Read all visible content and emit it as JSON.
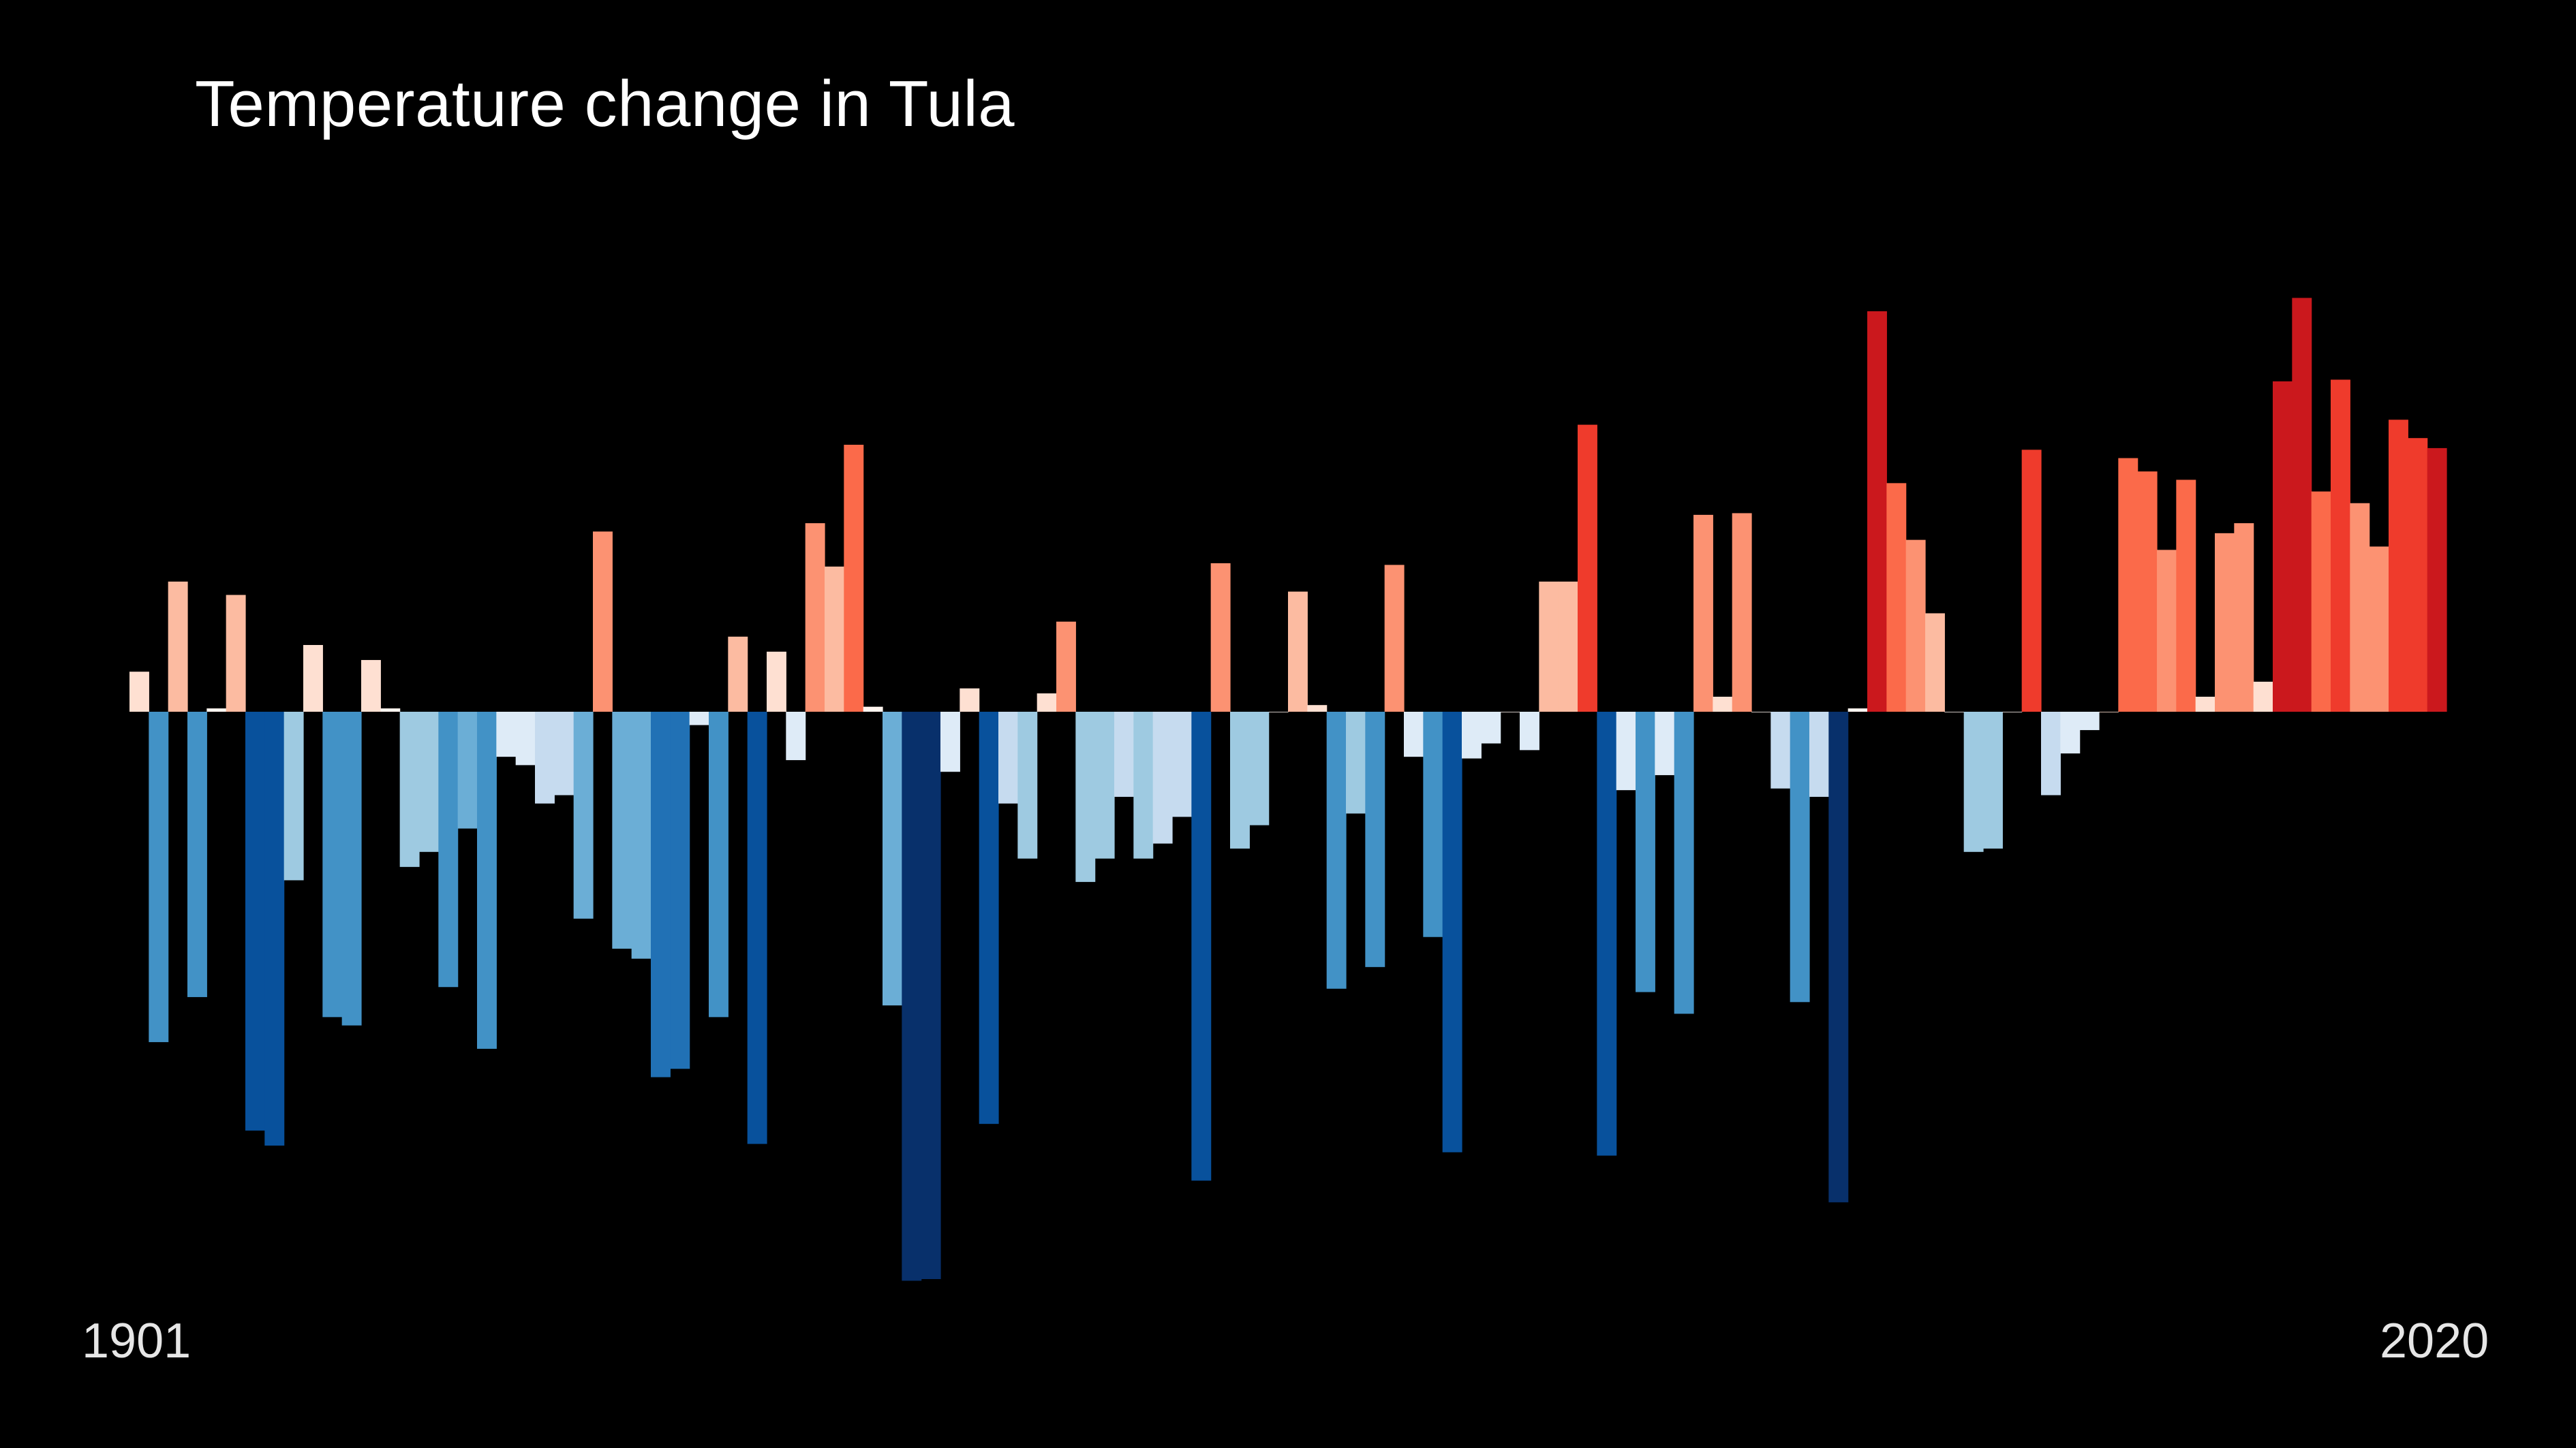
{
  "chart_data": {
    "type": "bar",
    "title": "Temperature change in Tula",
    "x_start_label": "1901",
    "x_end_label": "2020",
    "x": [
      1901,
      1902,
      1903,
      1904,
      1905,
      1906,
      1907,
      1908,
      1909,
      1910,
      1911,
      1912,
      1913,
      1914,
      1915,
      1916,
      1917,
      1918,
      1919,
      1920,
      1921,
      1922,
      1923,
      1924,
      1925,
      1926,
      1927,
      1928,
      1929,
      1930,
      1931,
      1932,
      1933,
      1934,
      1935,
      1936,
      1937,
      1938,
      1939,
      1940,
      1941,
      1942,
      1943,
      1944,
      1945,
      1946,
      1947,
      1948,
      1949,
      1950,
      1951,
      1952,
      1953,
      1954,
      1955,
      1956,
      1957,
      1958,
      1959,
      1960,
      1961,
      1962,
      1963,
      1964,
      1965,
      1966,
      1967,
      1968,
      1969,
      1970,
      1971,
      1972,
      1973,
      1974,
      1975,
      1976,
      1977,
      1978,
      1979,
      1980,
      1981,
      1982,
      1983,
      1984,
      1985,
      1986,
      1987,
      1988,
      1989,
      1990,
      1991,
      1992,
      1993,
      1994,
      1995,
      1996,
      1997,
      1998,
      1999,
      2000,
      2001,
      2002,
      2003,
      2004,
      2005,
      2006,
      2007,
      2008,
      2009,
      2010,
      2011,
      2012,
      2013,
      2014,
      2015,
      2016,
      2017,
      2018,
      2019,
      2020
    ],
    "values": [
      0.24,
      -1.98,
      0.78,
      -1.71,
      0.02,
      0.7,
      -2.51,
      -2.6,
      -1.01,
      0.4,
      -1.83,
      -1.88,
      0.31,
      0.02,
      -0.93,
      -0.84,
      -1.65,
      -0.7,
      -2.02,
      -0.27,
      -0.32,
      -0.55,
      -0.5,
      -1.24,
      1.08,
      -1.42,
      -1.48,
      -2.19,
      -2.14,
      -0.08,
      -1.83,
      0.45,
      -2.59,
      0.36,
      -0.29,
      1.13,
      0.87,
      1.6,
      0.03,
      -1.76,
      -3.41,
      -3.4,
      -0.36,
      0.14,
      -2.47,
      -0.55,
      -0.88,
      0.11,
      0.54,
      -1.02,
      -0.88,
      -0.51,
      -0.88,
      -0.79,
      -0.63,
      -2.81,
      0.89,
      -0.82,
      -0.68,
      0.0,
      0.72,
      0.04,
      -1.66,
      -0.61,
      -1.53,
      0.88,
      -0.27,
      -1.35,
      -2.64,
      -0.28,
      -0.19,
      0.0,
      -0.23,
      0.78,
      0.78,
      1.72,
      -2.66,
      -0.47,
      -1.68,
      -0.38,
      -1.81,
      1.18,
      0.09,
      1.19,
      0.0,
      -0.46,
      -1.74,
      -0.51,
      -2.94,
      0.02,
      2.4,
      1.37,
      1.03,
      0.59,
      0.0,
      -0.84,
      -0.82,
      0.0,
      1.57,
      -0.5,
      -0.25,
      -0.11,
      0.0,
      1.52,
      1.44,
      0.97,
      1.39,
      0.09,
      1.07,
      1.13,
      0.18,
      1.98,
      2.48,
      1.32,
      1.99,
      1.25,
      0.99,
      1.75,
      1.64,
      1.58
    ],
    "colors": [
      "#fee0d2",
      "#4292c6",
      "#fcbba1",
      "#4292c6",
      "#fff5f0",
      "#fcbba1",
      "#08519c",
      "#08519c",
      "#9ecae1",
      "#fee0d2",
      "#4292c6",
      "#4292c6",
      "#fee0d2",
      "#fff5f0",
      "#9ecae1",
      "#9ecae1",
      "#4292c6",
      "#6baed6",
      "#4292c6",
      "#deebf7",
      "#deebf7",
      "#c6dbef",
      "#c6dbef",
      "#6baed6",
      "#fc9272",
      "#6baed6",
      "#6baed6",
      "#2171b5",
      "#2171b5",
      "#deebf7",
      "#4292c6",
      "#fcbba1",
      "#08519c",
      "#fee0d2",
      "#deebf7",
      "#fc9272",
      "#fcbba1",
      "#fb6a4a",
      "#fff5f0",
      "#6baed6",
      "#08306b",
      "#08306b",
      "#deebf7",
      "#fee0d2",
      "#08519c",
      "#c6dbef",
      "#9ecae1",
      "#fee0d2",
      "#fc9272",
      "#9ecae1",
      "#9ecae1",
      "#c6dbef",
      "#9ecae1",
      "#c6dbef",
      "#c6dbef",
      "#08519c",
      "#fc9272",
      "#9ecae1",
      "#9ecae1",
      "#fff5f0",
      "#fcbba1",
      "#fee0d2",
      "#4292c6",
      "#9ecae1",
      "#4292c6",
      "#fc9272",
      "#deebf7",
      "#4292c6",
      "#08519c",
      "#deebf7",
      "#deebf7",
      "#fff5f0",
      "#deebf7",
      "#fcbba1",
      "#fcbba1",
      "#ef3b2c",
      "#08519c",
      "#deebf7",
      "#4292c6",
      "#deebf7",
      "#4292c6",
      "#fc9272",
      "#fee0d2",
      "#fc9272",
      "#fff5f0",
      "#c6dbef",
      "#4292c6",
      "#c6dbef",
      "#08306b",
      "#fff5f0",
      "#cb181d",
      "#fb6a4a",
      "#fc9272",
      "#fcbba1",
      "#fff5f0",
      "#9ecae1",
      "#9ecae1",
      "#fff5f0",
      "#ef3b2c",
      "#c6dbef",
      "#deebf7",
      "#deebf7",
      "#fee0d2",
      "#fb6a4a",
      "#fb6a4a",
      "#fc9272",
      "#fb6a4a",
      "#fee0d2",
      "#fc9272",
      "#fc9272",
      "#fee0d2",
      "#cb181d",
      "#cb181d",
      "#fb6a4a",
      "#ef3b2c",
      "#fc9272",
      "#fc9272",
      "#ef3b2c",
      "#ef3b2c",
      "#cb181d"
    ],
    "ylim": [
      -3.8,
      3.8
    ],
    "grid": false,
    "legend": "none"
  }
}
